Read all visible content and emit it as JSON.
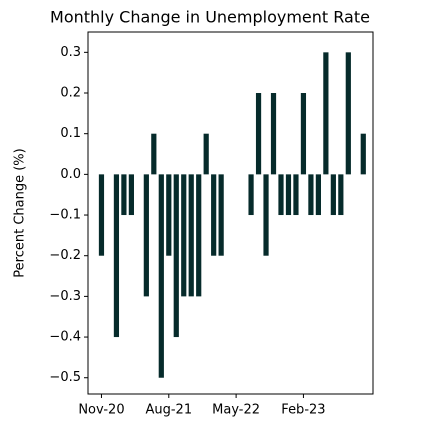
{
  "chart_data": {
    "type": "bar",
    "title": "Monthly Change in Unemployment Rate",
    "y_label": "Percent Change (%)",
    "categories": [
      "Nov-20",
      null,
      null,
      null,
      null,
      null,
      null,
      null,
      null,
      "Aug-21",
      null,
      null,
      null,
      null,
      null,
      null,
      null,
      null,
      "May-22",
      null,
      null,
      null,
      null,
      null,
      null,
      null,
      null,
      "Feb-23",
      null,
      null,
      null,
      null,
      null,
      null,
      null,
      null
    ],
    "values": [
      -0.2,
      0,
      -0.4,
      -0.1,
      -0.1,
      0,
      -0.3,
      0.1,
      -0.5,
      -0.2,
      -0.4,
      -0.3,
      -0.3,
      -0.3,
      0.1,
      -0.2,
      -0.2,
      0,
      0,
      0,
      -0.1,
      0.2,
      -0.2,
      0.2,
      -0.1,
      -0.1,
      -0.1,
      0.2,
      -0.1,
      -0.1,
      0.3,
      -0.1,
      -0.1,
      0.3,
      0,
      0.1
    ],
    "color": "#062b2b",
    "ylim": [
      -0.54,
      0.35
    ],
    "yticks": [
      {
        "value": -0.5,
        "label": "−0.5"
      },
      {
        "value": -0.4,
        "label": "−0.4"
      },
      {
        "value": -0.3,
        "label": "−0.3"
      },
      {
        "value": -0.2,
        "label": "−0.2"
      },
      {
        "value": -0.1,
        "label": "−0.1"
      },
      {
        "value": 0,
        "label": "0.0"
      },
      0.1,
      0.2,
      0.3
    ],
    "grid": false
  }
}
